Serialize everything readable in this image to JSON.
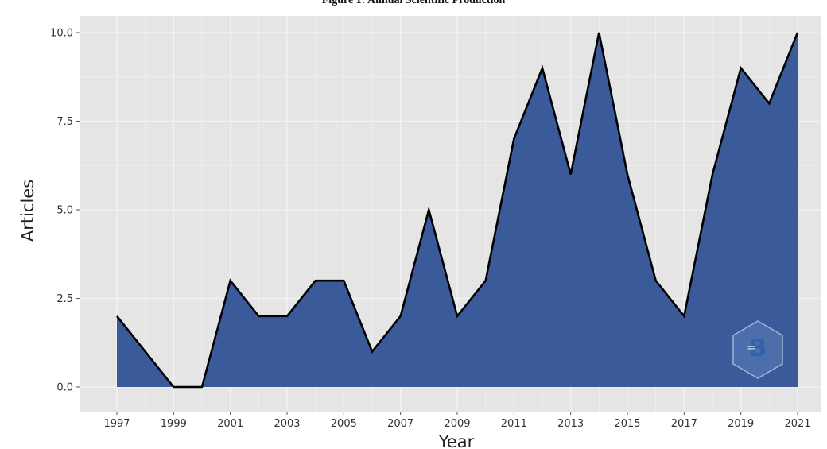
{
  "caption": "Figure 1: Annual Scientific Production",
  "chart_data": {
    "type": "area",
    "x": [
      1997,
      1998,
      1999,
      2000,
      2001,
      2002,
      2003,
      2004,
      2005,
      2006,
      2007,
      2008,
      2009,
      2010,
      2011,
      2012,
      2013,
      2014,
      2015,
      2016,
      2017,
      2018,
      2019,
      2020,
      2021
    ],
    "series": [
      {
        "values": [
          2,
          1,
          0,
          0,
          3,
          2,
          2,
          3,
          3,
          1,
          2,
          5,
          2,
          3,
          7,
          9,
          6,
          10,
          6,
          3,
          2,
          6,
          9,
          8,
          10
        ]
      }
    ],
    "xlabel": "Year",
    "ylabel": "Articles",
    "xticks": [
      "1997",
      "1999",
      "2001",
      "2003",
      "2005",
      "2007",
      "2009",
      "2011",
      "2013",
      "2015",
      "2017",
      "2019",
      "2021"
    ],
    "yticks": [
      "0.0",
      "2.5",
      "5.0",
      "7.5",
      "10.0"
    ],
    "xlim": [
      1997,
      2021
    ],
    "ylim": [
      0,
      10
    ],
    "grid": true,
    "colors": {
      "fill": "#3a5a99",
      "line": "#000000",
      "panel": "#e5e5e5",
      "grid": "#f2f2f2"
    },
    "watermark_icon": "bibliometrix-logo-icon"
  }
}
